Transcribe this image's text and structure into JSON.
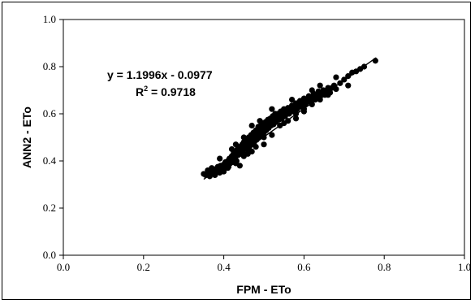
{
  "chart_data": {
    "type": "scatter",
    "title": "",
    "xlabel": "FPM -  ETo",
    "ylabel": "ANN2 -  ETo",
    "xlim": [
      0.0,
      1.0
    ],
    "ylim": [
      0.0,
      1.0
    ],
    "x_ticks": [
      "0.0",
      "0.2",
      "0.4",
      "0.6",
      "0.8",
      "1.0"
    ],
    "y_ticks": [
      "0.0",
      "0.2",
      "0.4",
      "0.6",
      "0.8",
      "1.0"
    ],
    "grid": false,
    "legend": "none",
    "marker_color": "#000000",
    "trendline": {
      "slope": 1.1996,
      "intercept": -0.0977,
      "x_range": [
        0.35,
        0.78
      ]
    },
    "annotations": {
      "equation": "y = 1.1996x - 0.0977",
      "r2_prefix": "R",
      "r2_sup": "2",
      "r2_value": " = 0.9718"
    },
    "series": [
      {
        "values": [
          [
            0.35,
            0.345
          ],
          [
            0.355,
            0.34
          ],
          [
            0.36,
            0.35
          ],
          [
            0.365,
            0.335
          ],
          [
            0.37,
            0.345
          ],
          [
            0.372,
            0.36
          ],
          [
            0.375,
            0.35
          ],
          [
            0.378,
            0.34
          ],
          [
            0.38,
            0.365
          ],
          [
            0.382,
            0.35
          ],
          [
            0.385,
            0.375
          ],
          [
            0.387,
            0.36
          ],
          [
            0.39,
            0.35
          ],
          [
            0.392,
            0.38
          ],
          [
            0.395,
            0.37
          ],
          [
            0.397,
            0.36
          ],
          [
            0.4,
            0.385
          ],
          [
            0.402,
            0.37
          ],
          [
            0.404,
            0.395
          ],
          [
            0.406,
            0.38
          ],
          [
            0.408,
            0.39
          ],
          [
            0.41,
            0.4
          ],
          [
            0.412,
            0.375
          ],
          [
            0.414,
            0.41
          ],
          [
            0.416,
            0.39
          ],
          [
            0.418,
            0.405
          ],
          [
            0.42,
            0.42
          ],
          [
            0.422,
            0.395
          ],
          [
            0.424,
            0.43
          ],
          [
            0.426,
            0.41
          ],
          [
            0.428,
            0.44
          ],
          [
            0.43,
            0.42
          ],
          [
            0.432,
            0.4
          ],
          [
            0.434,
            0.45
          ],
          [
            0.436,
            0.425
          ],
          [
            0.438,
            0.44
          ],
          [
            0.44,
            0.46
          ],
          [
            0.442,
            0.43
          ],
          [
            0.444,
            0.45
          ],
          [
            0.446,
            0.47
          ],
          [
            0.448,
            0.44
          ],
          [
            0.45,
            0.48
          ],
          [
            0.452,
            0.455
          ],
          [
            0.454,
            0.47
          ],
          [
            0.456,
            0.49
          ],
          [
            0.458,
            0.45
          ],
          [
            0.46,
            0.475
          ],
          [
            0.462,
            0.5
          ],
          [
            0.464,
            0.46
          ],
          [
            0.466,
            0.49
          ],
          [
            0.468,
            0.51
          ],
          [
            0.47,
            0.47
          ],
          [
            0.472,
            0.5
          ],
          [
            0.474,
            0.52
          ],
          [
            0.476,
            0.48
          ],
          [
            0.478,
            0.51
          ],
          [
            0.48,
            0.53
          ],
          [
            0.482,
            0.49
          ],
          [
            0.484,
            0.52
          ],
          [
            0.486,
            0.545
          ],
          [
            0.488,
            0.5
          ],
          [
            0.49,
            0.53
          ],
          [
            0.492,
            0.55
          ],
          [
            0.494,
            0.51
          ],
          [
            0.496,
            0.54
          ],
          [
            0.498,
            0.56
          ],
          [
            0.5,
            0.52
          ],
          [
            0.502,
            0.545
          ],
          [
            0.504,
            0.565
          ],
          [
            0.506,
            0.53
          ],
          [
            0.508,
            0.555
          ],
          [
            0.51,
            0.575
          ],
          [
            0.512,
            0.54
          ],
          [
            0.514,
            0.56
          ],
          [
            0.516,
            0.58
          ],
          [
            0.518,
            0.55
          ],
          [
            0.52,
            0.57
          ],
          [
            0.522,
            0.59
          ],
          [
            0.524,
            0.555
          ],
          [
            0.526,
            0.58
          ],
          [
            0.528,
            0.6
          ],
          [
            0.53,
            0.565
          ],
          [
            0.532,
            0.585
          ],
          [
            0.535,
            0.6
          ],
          [
            0.538,
            0.575
          ],
          [
            0.54,
            0.595
          ],
          [
            0.542,
            0.61
          ],
          [
            0.545,
            0.58
          ],
          [
            0.548,
            0.605
          ],
          [
            0.55,
            0.62
          ],
          [
            0.553,
            0.59
          ],
          [
            0.556,
            0.61
          ],
          [
            0.56,
            0.625
          ],
          [
            0.563,
            0.6
          ],
          [
            0.566,
            0.62
          ],
          [
            0.57,
            0.635
          ],
          [
            0.573,
            0.61
          ],
          [
            0.576,
            0.63
          ],
          [
            0.58,
            0.645
          ],
          [
            0.583,
            0.62
          ],
          [
            0.586,
            0.64
          ],
          [
            0.59,
            0.655
          ],
          [
            0.593,
            0.63
          ],
          [
            0.596,
            0.65
          ],
          [
            0.6,
            0.665
          ],
          [
            0.604,
            0.64
          ],
          [
            0.608,
            0.66
          ],
          [
            0.612,
            0.675
          ],
          [
            0.616,
            0.65
          ],
          [
            0.62,
            0.67
          ],
          [
            0.624,
            0.685
          ],
          [
            0.628,
            0.66
          ],
          [
            0.632,
            0.68
          ],
          [
            0.636,
            0.695
          ],
          [
            0.64,
            0.67
          ],
          [
            0.644,
            0.69
          ],
          [
            0.648,
            0.7
          ],
          [
            0.652,
            0.68
          ],
          [
            0.656,
            0.7
          ],
          [
            0.66,
            0.71
          ],
          [
            0.665,
            0.69
          ],
          [
            0.67,
            0.71
          ],
          [
            0.675,
            0.72
          ],
          [
            0.68,
            0.705
          ],
          [
            0.69,
            0.73
          ],
          [
            0.7,
            0.745
          ],
          [
            0.71,
            0.76
          ],
          [
            0.72,
            0.775
          ],
          [
            0.73,
            0.78
          ],
          [
            0.74,
            0.79
          ],
          [
            0.75,
            0.8
          ],
          [
            0.778,
            0.825
          ],
          [
            0.71,
            0.72
          ],
          [
            0.68,
            0.755
          ],
          [
            0.64,
            0.72
          ],
          [
            0.6,
            0.61
          ],
          [
            0.58,
            0.6
          ],
          [
            0.55,
            0.56
          ],
          [
            0.52,
            0.62
          ],
          [
            0.5,
            0.5
          ],
          [
            0.47,
            0.55
          ],
          [
            0.45,
            0.42
          ],
          [
            0.43,
            0.47
          ],
          [
            0.41,
            0.37
          ],
          [
            0.44,
            0.38
          ],
          [
            0.46,
            0.43
          ],
          [
            0.48,
            0.46
          ],
          [
            0.5,
            0.47
          ],
          [
            0.52,
            0.51
          ],
          [
            0.54,
            0.55
          ],
          [
            0.56,
            0.57
          ],
          [
            0.58,
            0.58
          ],
          [
            0.6,
            0.62
          ],
          [
            0.62,
            0.64
          ],
          [
            0.64,
            0.66
          ],
          [
            0.66,
            0.68
          ],
          [
            0.62,
            0.7
          ],
          [
            0.57,
            0.66
          ],
          [
            0.53,
            0.58
          ],
          [
            0.49,
            0.57
          ],
          [
            0.45,
            0.5
          ],
          [
            0.42,
            0.45
          ],
          [
            0.39,
            0.41
          ],
          [
            0.37,
            0.37
          ],
          [
            0.36,
            0.36
          ],
          [
            0.4,
            0.355
          ],
          [
            0.43,
            0.39
          ],
          [
            0.47,
            0.44
          ]
        ]
      }
    ]
  }
}
